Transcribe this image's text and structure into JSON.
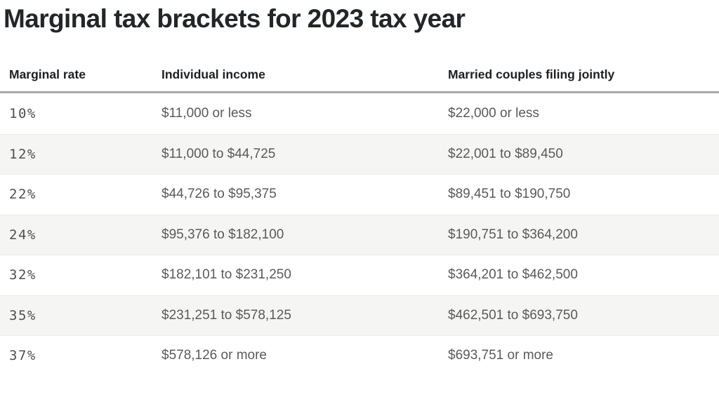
{
  "page": {
    "title": "Marginal tax brackets for 2023 tax year"
  },
  "colors": {
    "title_text": "#232629",
    "header_text": "#1d1f22",
    "body_text": "#5a5a5c",
    "rate_text": "#4f4f51",
    "header_rule": "#a9a9a9",
    "row_stripe": "#f5f5f3",
    "row_divider": "#ebebe9",
    "background": "#ffffff"
  },
  "chart_data": {
    "type": "table",
    "title": "Marginal tax brackets for 2023 tax year",
    "columns": [
      "Marginal rate",
      "Individual income",
      "Married couples filing jointly"
    ],
    "rows": [
      [
        "10%",
        "$11,000 or less",
        "$22,000 or less"
      ],
      [
        "12%",
        "$11,000 to $44,725",
        "$22,001 to $89,450"
      ],
      [
        "22%",
        "$44,726 to $95,375",
        "$89,451 to $190,750"
      ],
      [
        "24%",
        "$95,376 to $182,100",
        "$190,751 to $364,200"
      ],
      [
        "32%",
        "$182,101 to $231,250",
        "$364,201 to $462,500"
      ],
      [
        "35%",
        "$231,251 to $578,125",
        "$462,501 to $693,750"
      ],
      [
        "37%",
        "$578,126 or more",
        "$693,751 or more"
      ]
    ],
    "layout": {
      "zebra_striping": true,
      "header_rule": true
    }
  }
}
